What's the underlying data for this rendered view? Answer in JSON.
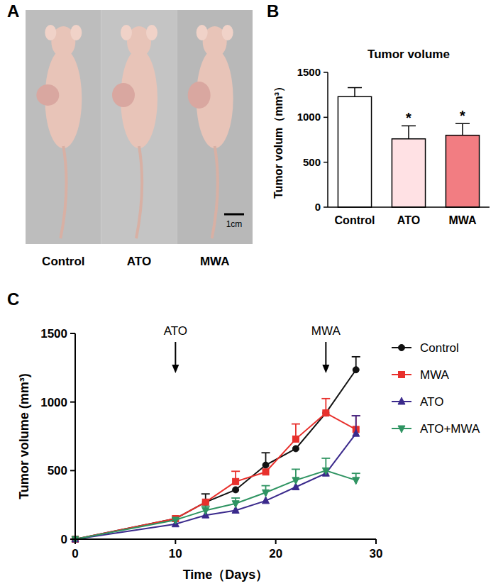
{
  "photo": {
    "panel": "A",
    "labels": [
      "Control",
      "ATO",
      "MWA"
    ],
    "scale_bar": "1cm"
  },
  "chart_data": [
    {
      "panel": "B",
      "type": "bar",
      "title": "Tumor volume",
      "y_label": "Tumor volum（mm³）",
      "categories": [
        "Control",
        "ATO",
        "MWA"
      ],
      "values": [
        1230,
        760,
        800
      ],
      "errors": [
        100,
        145,
        130
      ],
      "colors": [
        "#ffffff",
        "#ffe1e4",
        "#f27d82"
      ],
      "significance": [
        null,
        "*",
        "*"
      ],
      "ylim": [
        0,
        1500
      ],
      "yticks": [
        0,
        500,
        1000,
        1500
      ],
      "grid": false
    },
    {
      "panel": "C",
      "type": "line",
      "x_label": "Time（Days）",
      "y_label": "Tumor volume (mm³)",
      "x": [
        0,
        10,
        13,
        16,
        19,
        22,
        25,
        28
      ],
      "series": [
        {
          "name": "Control",
          "color": "#111111",
          "marker": "circle",
          "values": [
            0,
            150,
            270,
            360,
            540,
            660,
            920,
            1235
          ],
          "errors": [
            null,
            null,
            60,
            null,
            90,
            null,
            null,
            95
          ]
        },
        {
          "name": "MWA",
          "color": "#e8302c",
          "marker": "square",
          "values": [
            0,
            150,
            270,
            420,
            490,
            730,
            920,
            800
          ],
          "errors": [
            null,
            null,
            null,
            75,
            null,
            110,
            105,
            100
          ]
        },
        {
          "name": "ATO",
          "color": "#3b2a8c",
          "marker": "triangle",
          "values": [
            0,
            110,
            175,
            210,
            280,
            380,
            480,
            770
          ],
          "errors": [
            null,
            null,
            null,
            null,
            null,
            null,
            null,
            130
          ]
        },
        {
          "name": "ATO+MWA",
          "color": "#2f9462",
          "marker": "triangle-down",
          "values": [
            0,
            140,
            210,
            260,
            340,
            430,
            500,
            430
          ],
          "errors": [
            null,
            null,
            30,
            40,
            50,
            80,
            90,
            50
          ]
        }
      ],
      "annotations": [
        {
          "text": "ATO",
          "x": 10
        },
        {
          "text": "MWA",
          "x": 25
        }
      ],
      "xlim": [
        0,
        30
      ],
      "xticks": [
        0,
        10,
        20,
        30
      ],
      "ylim": [
        0,
        1500
      ],
      "yticks": [
        0,
        500,
        1000,
        1500
      ],
      "legend": "right",
      "grid": false
    }
  ]
}
